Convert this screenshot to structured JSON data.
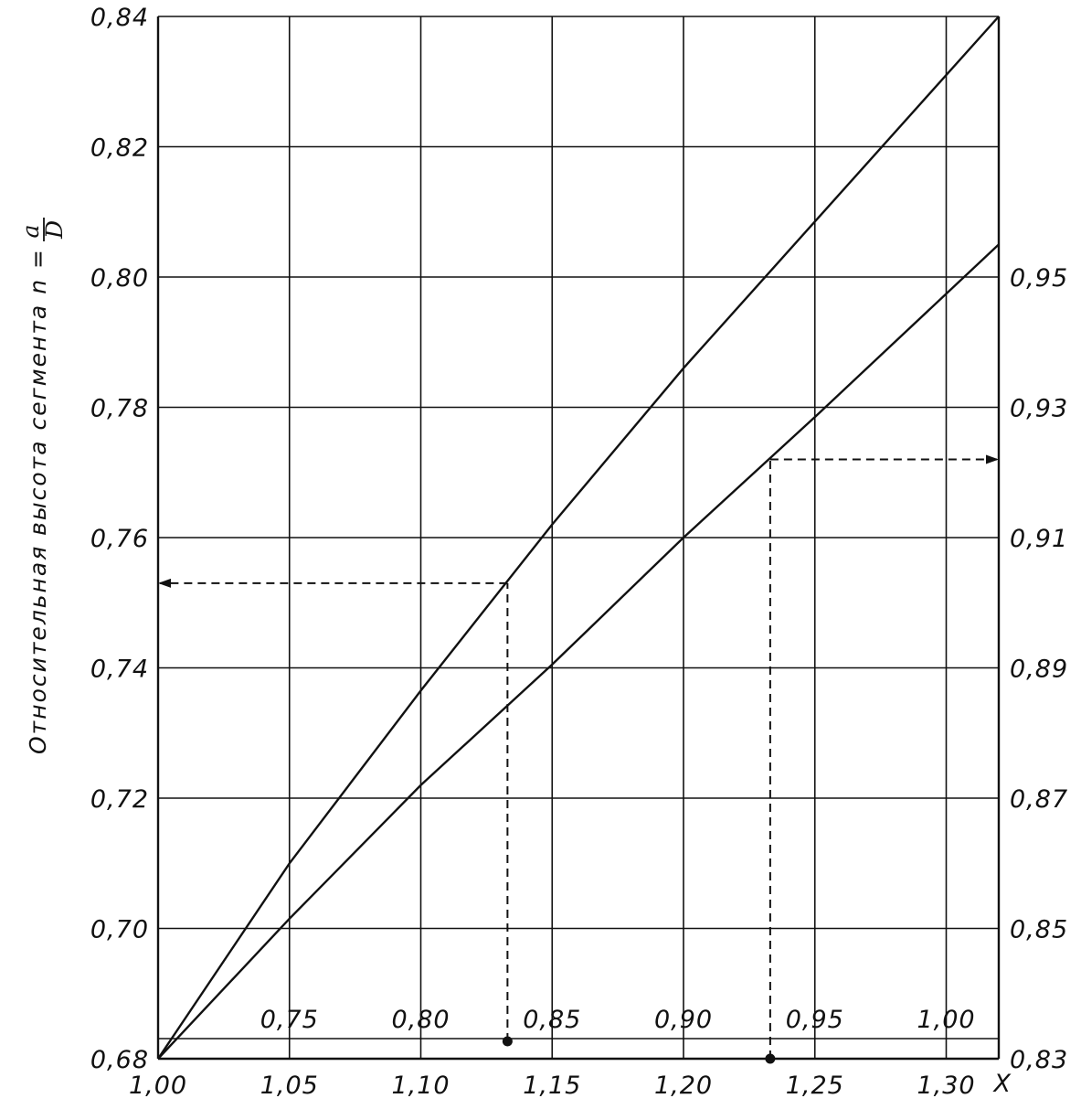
{
  "chart_data": {
    "type": "line",
    "ylabel": {
      "text": "Относительная высота сегмента n =",
      "numerator": "a",
      "denominator": "D"
    },
    "xlabel": "X",
    "x_bottom": {
      "range": [
        1.0,
        1.32
      ],
      "ticks": [
        1.0,
        1.05,
        1.1,
        1.15,
        1.2,
        1.25,
        1.3
      ],
      "tick_labels": [
        "1,00",
        "1,05",
        "1,10",
        "1,15",
        "1,20",
        "1,25",
        "1,30"
      ]
    },
    "x_inner": {
      "ticks": [
        0.75,
        0.8,
        0.85,
        0.9,
        0.95,
        1.0
      ],
      "tick_labels": [
        "0,75",
        "0,80",
        "0,85",
        "0,90",
        "0,95",
        "1,00"
      ]
    },
    "y_left": {
      "range": [
        0.68,
        0.84
      ],
      "ticks": [
        0.68,
        0.7,
        0.72,
        0.74,
        0.76,
        0.78,
        0.8,
        0.82,
        0.84
      ],
      "tick_labels": [
        "0,68",
        "0,70",
        "0,72",
        "0,74",
        "0,76",
        "0,78",
        "0,80",
        "0,82",
        "0,84"
      ]
    },
    "y_right": {
      "ticks": [
        0.83,
        0.85,
        0.87,
        0.89,
        0.91,
        0.93,
        0.95
      ],
      "tick_labels": [
        "0,83",
        "0,85",
        "0,87",
        "0,89",
        "0,91",
        "0,93",
        "0,95"
      ]
    },
    "series": [
      {
        "x": [
          1.0,
          1.05,
          1.1,
          1.15,
          1.2,
          1.25,
          1.32
        ],
        "y": [
          0.68,
          0.71,
          0.7365,
          0.762,
          0.786,
          0.8085,
          0.84
        ]
      },
      {
        "x": [
          1.0,
          1.05,
          1.1,
          1.15,
          1.2,
          1.25,
          1.32
        ],
        "y": [
          0.68,
          0.7015,
          0.722,
          0.7405,
          0.76,
          0.7785,
          0.805
        ]
      }
    ],
    "guides": [
      {
        "x": 1.133,
        "y": 0.753,
        "direction": "left"
      },
      {
        "x": 1.233,
        "y": 0.772,
        "direction": "right"
      }
    ],
    "grid": true
  }
}
